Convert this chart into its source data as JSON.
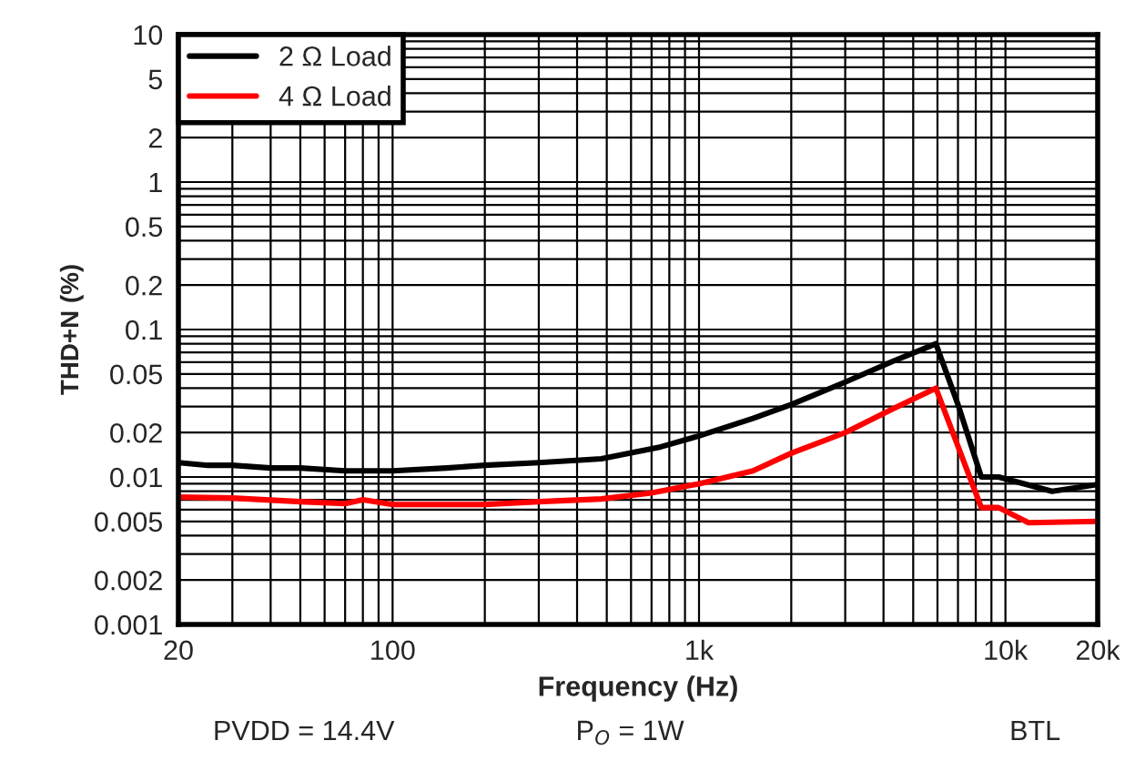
{
  "chart_data": {
    "type": "line",
    "xlabel": "Frequency (Hz)",
    "ylabel": "THD+N (%)",
    "log": "xy",
    "grid": true,
    "legend": "top left",
    "line_style": "solid",
    "marker": "none",
    "xlim": [
      20,
      20000
    ],
    "xticks": [
      20,
      100,
      {
        "value": 1000,
        "label": "1k"
      },
      {
        "value": 10000,
        "label": "10k"
      },
      {
        "value": 20000,
        "label": "20k"
      }
    ],
    "ylim": [
      0.001,
      10
    ],
    "yticks": [
      0.001,
      0.002,
      0.005,
      0.01,
      0.02,
      0.05,
      0.1,
      0.2,
      0.5,
      1,
      2,
      5,
      10
    ],
    "series": [
      {
        "name": "2 Ω Load",
        "color": "#000000",
        "x": [
          20,
          25,
          30,
          40,
          50,
          70,
          100,
          150,
          200,
          300,
          480,
          750,
          1000,
          1500,
          2000,
          3000,
          4300,
          5930,
          7000,
          8340,
          9500,
          14200,
          20000
        ],
        "values": [
          0.0125,
          0.012,
          0.012,
          0.0115,
          0.0115,
          0.011,
          0.011,
          0.0115,
          0.012,
          0.0125,
          0.0133,
          0.016,
          0.019,
          0.025,
          0.031,
          0.044,
          0.061,
          0.08,
          0.031,
          0.01,
          0.01,
          0.008,
          0.0089
        ]
      },
      {
        "name": "4 Ω Load",
        "color": "#ff0000",
        "x": [
          20,
          30,
          50,
          70,
          80,
          100,
          200,
          300,
          480,
          700,
          1000,
          1500,
          2000,
          3000,
          4300,
          5930,
          8340,
          9500,
          11900,
          20000
        ],
        "values": [
          0.0073,
          0.0072,
          0.0068,
          0.0066,
          0.007,
          0.0065,
          0.0065,
          0.0068,
          0.0071,
          0.0078,
          0.009,
          0.011,
          0.0145,
          0.02,
          0.029,
          0.04,
          0.0062,
          0.0062,
          0.0049,
          0.005
        ]
      }
    ],
    "annotations": [
      "PVDD = 14.4V",
      "P$_{O}$ = 1W",
      "BTL"
    ]
  }
}
